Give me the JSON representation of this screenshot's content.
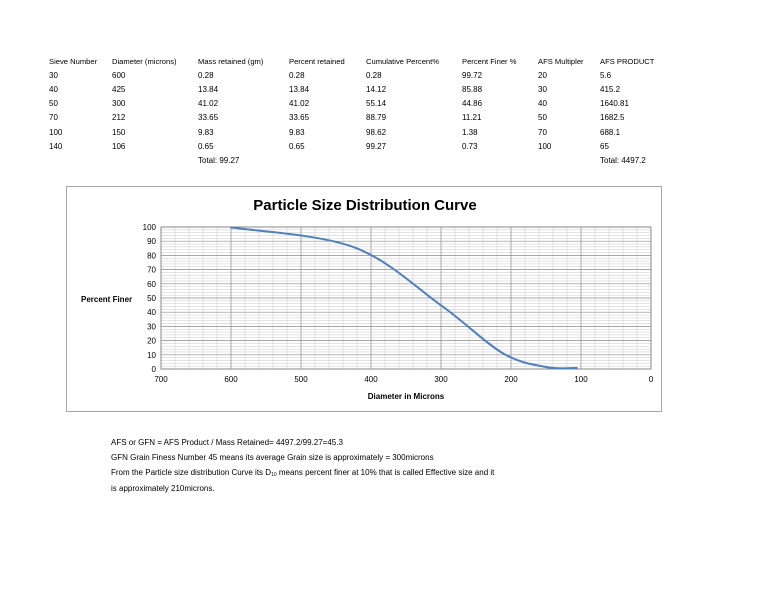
{
  "table": {
    "headers": [
      "Sieve Number",
      "Diameter (microns)",
      "Mass retained  (gm)",
      "Percent retained",
      "Cumulative Percent%",
      "Percent Finer %",
      "AFS Multipler",
      "AFS PRODUCT"
    ],
    "rows": [
      [
        "30",
        "600",
        "0.28",
        "0.28",
        "0.28",
        "99.72",
        "20",
        "5.6"
      ],
      [
        "40",
        "425",
        "13.84",
        "13.84",
        "14.12",
        "85.88",
        "30",
        "415.2"
      ],
      [
        "50",
        "300",
        "41.02",
        "41.02",
        "55.14",
        "44.86",
        "40",
        "1640.81"
      ],
      [
        "70",
        "212",
        "33.65",
        "33.65",
        "88.79",
        "11.21",
        "50",
        "1682.5"
      ],
      [
        "100",
        "150",
        "9.83",
        "9.83",
        "98.62",
        "1.38",
        "70",
        "688.1"
      ],
      [
        "140",
        "106",
        "0.65",
        "0.65",
        "99.27",
        "0.73",
        "100",
        "65"
      ]
    ],
    "mass_total": "Total: 99.27",
    "afs_total": "Total: 4497.2"
  },
  "chart_data": {
    "type": "line",
    "title": "Particle Size Distribution Curve",
    "xlabel": "Diameter in Microns",
    "ylabel": "Percent Finer",
    "xlim": [
      700,
      0
    ],
    "ylim": [
      0,
      100
    ],
    "x_reversed": true,
    "xticks": [
      700,
      600,
      500,
      400,
      300,
      200,
      100,
      0
    ],
    "yticks": [
      0,
      10,
      20,
      30,
      40,
      50,
      60,
      70,
      80,
      90,
      100
    ],
    "grid": true,
    "series": [
      {
        "name": "Percent Finer",
        "color": "#4f81bd",
        "x": [
          600,
          425,
          300,
          212,
          150,
          106
        ],
        "y": [
          99.72,
          85.88,
          44.86,
          11.21,
          1.38,
          0.73
        ]
      }
    ]
  },
  "notes": {
    "line1": "AFS or GFN = AFS Product / Mass Retained= 4497.2/99.27=45.3",
    "line2": "GFN Grain Finess Number 45 means its average Grain size is approximately = 300microns",
    "line3_pre": "From the Particle size distribution Curve its D",
    "line3_sub": "10",
    "line3_post": " means percent finer at 10%  that is called Effective size and it",
    "line4": "is approximately 210microns."
  }
}
